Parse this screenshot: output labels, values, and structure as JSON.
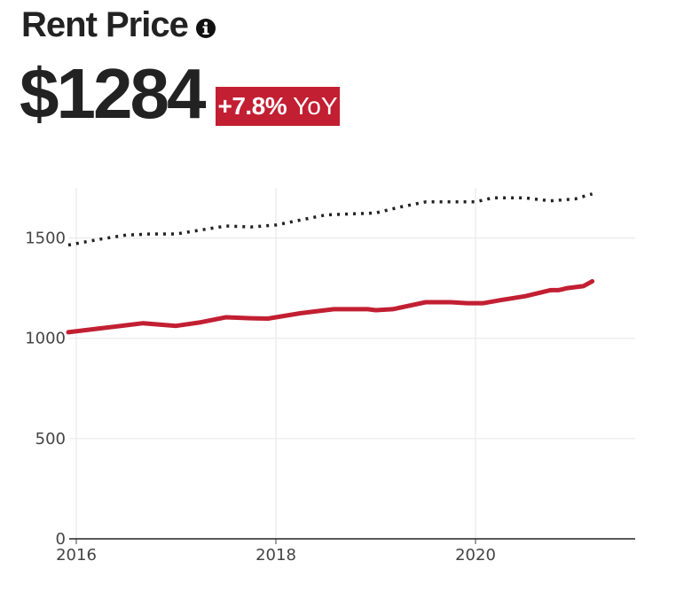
{
  "header": {
    "title": "Rent Price",
    "value": "$1284",
    "change_pct": "+7.8%",
    "change_suffix": "YoY",
    "badge_color": "#c21f32"
  },
  "chart_data": {
    "type": "line",
    "title": "",
    "xlabel": "",
    "ylabel": "",
    "xlim": [
      2016,
      2021.6
    ],
    "ylim": [
      0,
      1750
    ],
    "xticks": [
      2016,
      2018,
      2020
    ],
    "yticks": [
      0,
      500,
      1000,
      1500
    ],
    "grid": true,
    "series": [
      {
        "style": "solid",
        "color": "#c21f32",
        "x": [
          2015.92,
          2016.25,
          2016.5,
          2016.67,
          2017.0,
          2017.25,
          2017.5,
          2017.75,
          2017.92,
          2018.25,
          2018.58,
          2018.92,
          2019.0,
          2019.17,
          2019.5,
          2019.75,
          2019.92,
          2020.08,
          2020.25,
          2020.5,
          2020.75,
          2020.83,
          2020.92,
          2021.0,
          2021.08,
          2021.17
        ],
        "y": [
          1030,
          1050,
          1065,
          1075,
          1062,
          1080,
          1105,
          1100,
          1098,
          1125,
          1145,
          1145,
          1140,
          1145,
          1180,
          1180,
          1175,
          1175,
          1190,
          1210,
          1240,
          1240,
          1250,
          1255,
          1260,
          1284
        ]
      },
      {
        "style": "dotted",
        "color": "#222222",
        "x": [
          2015.92,
          2016.25,
          2016.5,
          2016.75,
          2017.0,
          2017.25,
          2017.5,
          2017.75,
          2018.0,
          2018.25,
          2018.5,
          2018.75,
          2019.0,
          2019.25,
          2019.5,
          2019.75,
          2020.0,
          2020.17,
          2020.5,
          2020.75,
          2021.0,
          2021.17
        ],
        "y": [
          1465,
          1495,
          1515,
          1520,
          1520,
          1540,
          1560,
          1555,
          1565,
          1590,
          1615,
          1620,
          1625,
          1655,
          1680,
          1680,
          1680,
          1700,
          1700,
          1685,
          1695,
          1720
        ]
      }
    ]
  }
}
